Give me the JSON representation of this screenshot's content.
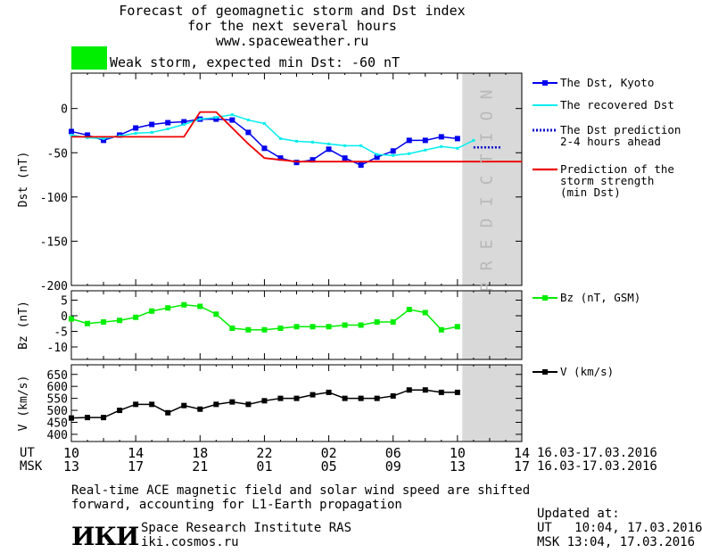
{
  "header": {
    "title_line1": "Forecast of geomagnetic storm and Dst index",
    "title_line2": "for the next several hours",
    "title_line3": "www.spaceweather.ru",
    "storm_label": "Weak storm, expected min Dst: -60 nT"
  },
  "colors": {
    "storm_box": "#00ee00",
    "dst_kyoto": "#0000ee",
    "dst_recovered": "#00eeee",
    "dst_prediction": "#0000cc",
    "storm_strength": "#ee0000",
    "bz": "#00ee00",
    "v": "#000000",
    "prediction_band": "#d9d9d9"
  },
  "axes": {
    "time_labels_ut": [
      "10",
      "14",
      "18",
      "22",
      "02",
      "06",
      "10",
      "14"
    ],
    "time_labels_msk": [
      "13",
      "17",
      "21",
      "01",
      "05",
      "09",
      "13",
      "17"
    ],
    "ut_row_label": "UT",
    "msk_row_label": "MSK",
    "date_range_ut": "16.03-17.03.2016",
    "date_range_msk": "16.03-17.03.2016",
    "prediction_band_text": "PREDICTION"
  },
  "chart_data": [
    {
      "type": "line",
      "ylabel": "Dst (nT)",
      "ylim": [
        -200,
        40
      ],
      "yticks": [
        0,
        -50,
        -100,
        -150,
        -200
      ],
      "x_hours_ut": [
        10,
        11,
        12,
        13,
        14,
        15,
        16,
        17,
        18,
        19,
        20,
        21,
        22,
        23,
        24,
        25,
        26,
        27,
        28,
        29,
        30,
        31,
        32,
        33,
        34,
        35
      ],
      "series": [
        {
          "name": "The Dst, Kyoto",
          "x": [
            10,
            11,
            12,
            13,
            14,
            15,
            16,
            17,
            18,
            19,
            20,
            21,
            22,
            23,
            24,
            25,
            26,
            27,
            28,
            29,
            30,
            31,
            32,
            33,
            34
          ],
          "values": [
            -26,
            -30,
            -36,
            -30,
            -22,
            -18,
            -16,
            -15,
            -12,
            -12,
            -13,
            -27,
            -45,
            -56,
            -61,
            -58,
            -46,
            -56,
            -64,
            -55,
            -48,
            -36,
            -36,
            -32,
            -34
          ]
        },
        {
          "name": "The recovered Dst",
          "x": [
            10,
            11,
            12,
            13,
            14,
            15,
            16,
            17,
            18,
            19,
            20,
            21,
            22,
            23,
            24,
            25,
            26,
            27,
            28,
            29,
            30,
            31,
            32,
            33,
            34,
            35
          ],
          "values": [
            -30,
            -33,
            -34,
            -31,
            -28,
            -27,
            -23,
            -18,
            -12,
            -10,
            -7,
            -13,
            -17,
            -34,
            -37,
            -38,
            -40,
            -42,
            -42,
            -52,
            -53,
            -51,
            -47,
            -43,
            -45,
            -36
          ]
        },
        {
          "name": "The Dst prediction 2-4 hours ahead",
          "x": [
            35,
            36.7
          ],
          "values": [
            -44,
            -44
          ]
        },
        {
          "name": "Prediction of the storm strength (min Dst)",
          "x": [
            10,
            17,
            18,
            19,
            21,
            22,
            24,
            38
          ],
          "values": [
            -32,
            -32,
            -4,
            -4,
            -40,
            -56,
            -60,
            -60
          ]
        }
      ],
      "legend": [
        {
          "line1": "The Dst, Kyoto",
          "line2": "",
          "line3": ""
        },
        {
          "line1": "The recovered Dst",
          "line2": "",
          "line3": ""
        },
        {
          "line1": "The Dst prediction",
          "line2": "2-4 hours ahead",
          "line3": ""
        },
        {
          "line1": "Prediction of the",
          "line2": "storm strength",
          "line3": "(min Dst)"
        }
      ]
    },
    {
      "type": "line",
      "ylabel": "Bz (nT)",
      "ylim": [
        -14,
        8
      ],
      "yticks": [
        5,
        0,
        -5,
        -10
      ],
      "series": [
        {
          "name": "Bz (nT, GSM)",
          "x": [
            10,
            11,
            12,
            13,
            14,
            15,
            16,
            17,
            18,
            19,
            20,
            21,
            22,
            23,
            24,
            25,
            26,
            27,
            28,
            29,
            30,
            31,
            32,
            33,
            34,
            35
          ],
          "values": [
            -1,
            -2.5,
            -2,
            -1.5,
            -0.5,
            1.5,
            2.5,
            3.5,
            3,
            0.5,
            -4,
            -4.5,
            -4.5,
            -4,
            -3.5,
            -3.5,
            -3.5,
            -3,
            -3,
            -2,
            -2,
            2,
            1,
            -4.5,
            -3.5,
            null
          ]
        }
      ],
      "legend": [
        {
          "line1": "Bz (nT, GSM)"
        }
      ]
    },
    {
      "type": "line",
      "ylabel": "V (km/s)",
      "ylim": [
        370,
        690
      ],
      "yticks": [
        650,
        600,
        550,
        500,
        450,
        400
      ],
      "series": [
        {
          "name": "V (km/s)",
          "x": [
            10,
            11,
            12,
            13,
            14,
            15,
            16,
            17,
            18,
            19,
            20,
            21,
            22,
            23,
            24,
            25,
            26,
            27,
            28,
            29,
            30,
            31,
            32,
            33,
            34
          ],
          "values": [
            468,
            470,
            470,
            500,
            525,
            525,
            490,
            520,
            505,
            525,
            535,
            525,
            540,
            550,
            550,
            565,
            575,
            550,
            550,
            550,
            560,
            585,
            585,
            575,
            575
          ]
        }
      ],
      "legend": [
        {
          "line1": "V (km/s)"
        }
      ]
    }
  ],
  "footer": {
    "note_line1": "Real-time ACE magnetic field and solar wind speed are shifted",
    "note_line2": "forward, accounting for L1-Earth propagation",
    "institute": "Space Research Institute RAS",
    "site": "iki.cosmos.ru",
    "logo_text": "ИКИ",
    "updated_label": "Updated at:",
    "updated_ut": "UT   10:04, 17.03.2016",
    "updated_msk": "MSK 13:04, 17.03.2016"
  }
}
